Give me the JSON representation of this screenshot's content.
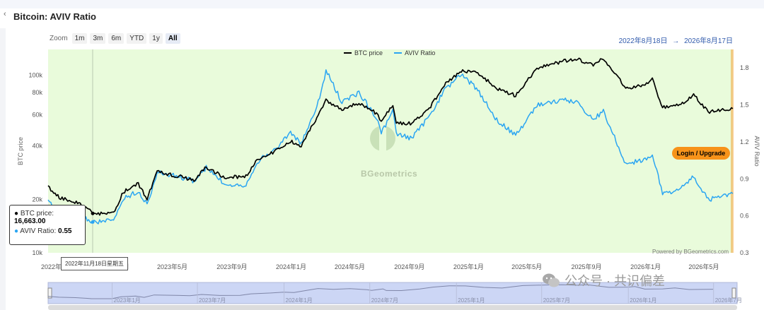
{
  "header": {
    "title": "Bitcoin: AVIV Ratio",
    "back_icon": "chevron-left-icon"
  },
  "zoom": {
    "label": "Zoom",
    "buttons": [
      "1m",
      "3m",
      "6m",
      "YTD",
      "1y",
      "All"
    ],
    "selected": "All"
  },
  "range": {
    "start": "2022年8月18日",
    "arrow": "→",
    "end": "2026年8月17日"
  },
  "tooltip": {
    "date": "2022年11月18日星期五",
    "btc_label": "BTC price:",
    "btc_value": "16,663.00",
    "aviv_label": "AVIV Ratio:",
    "aviv_value": "0.55"
  },
  "login_button": "Login / Upgrade",
  "powered_by": "Powered by BGeometrics.com",
  "watermark": "BGeometrics",
  "wechat_watermark": "公众号 · 共识偏差",
  "colors": {
    "plot_bg": "#e9fbdb",
    "btc": "#000000",
    "aviv": "#2aa5f2",
    "login": "#f7931a",
    "navigator": "#ccd6f5"
  },
  "chart_data": {
    "type": "line",
    "title": "",
    "legend": [
      "BTC price",
      "AVIV Ratio"
    ],
    "legend_position": "top-center",
    "left_axis": {
      "label": "BTC price",
      "scale": "log",
      "ticks": [
        "10k",
        "20k",
        "40k",
        "60k",
        "80k",
        "100k"
      ],
      "range": [
        10000,
        140000
      ]
    },
    "right_axis": {
      "label": "AVIV Ratio",
      "ticks": [
        "0.3",
        "0.6",
        "0.9",
        "1.2",
        "1.5",
        "1.8"
      ],
      "range": [
        0.3,
        1.95
      ]
    },
    "x_ticks": [
      "2022年",
      "2023年1月",
      "2023年5月",
      "2023年9月",
      "2024年1月",
      "2024年5月",
      "2024年9月",
      "2025年1月",
      "2025年5月",
      "2025年9月",
      "2026年1月",
      "2026年5月"
    ],
    "navigator_ticks": [
      "2023年1月",
      "2023年7月",
      "2024年1月",
      "2024年7月",
      "2025年1月",
      "2025年7月",
      "2026年1月",
      "2026年7月"
    ],
    "x_range": [
      "2022-08-18",
      "2026-06-30"
    ],
    "series": [
      {
        "name": "BTC price",
        "points": [
          [
            "2022-08-18",
            23500
          ],
          [
            "2022-09-10",
            20500
          ],
          [
            "2022-10-15",
            19300
          ],
          [
            "2022-11-09",
            17500
          ],
          [
            "2022-11-18",
            16663
          ],
          [
            "2022-12-31",
            16600
          ],
          [
            "2023-01-20",
            22000
          ],
          [
            "2023-02-20",
            24500
          ],
          [
            "2023-03-10",
            20200
          ],
          [
            "2023-03-31",
            28500
          ],
          [
            "2023-05-15",
            27000
          ],
          [
            "2023-06-15",
            25500
          ],
          [
            "2023-07-10",
            30500
          ],
          [
            "2023-08-17",
            26500
          ],
          [
            "2023-09-30",
            27000
          ],
          [
            "2023-10-23",
            33500
          ],
          [
            "2023-11-30",
            37500
          ],
          [
            "2023-12-31",
            42500
          ],
          [
            "2024-01-22",
            40000
          ],
          [
            "2024-02-29",
            62000
          ],
          [
            "2024-03-13",
            72000
          ],
          [
            "2024-04-15",
            64000
          ],
          [
            "2024-05-20",
            70000
          ],
          [
            "2024-06-25",
            61000
          ],
          [
            "2024-07-05",
            55000
          ],
          [
            "2024-07-29",
            68000
          ],
          [
            "2024-08-05",
            54000
          ],
          [
            "2024-09-06",
            53500
          ],
          [
            "2024-10-15",
            67000
          ],
          [
            "2024-11-12",
            88000
          ],
          [
            "2024-12-17",
            106000
          ],
          [
            "2025-01-20",
            104000
          ],
          [
            "2025-02-28",
            84000
          ],
          [
            "2025-04-08",
            77000
          ],
          [
            "2025-05-22",
            110000
          ],
          [
            "2025-07-14",
            120000
          ],
          [
            "2025-08-14",
            123000
          ],
          [
            "2025-09-15",
            115000
          ],
          [
            "2025-10-06",
            124000
          ],
          [
            "2025-11-21",
            85000
          ],
          [
            "2025-12-31",
            88000
          ],
          [
            "2026-01-15",
            95000
          ],
          [
            "2026-02-05",
            66000
          ],
          [
            "2026-03-15",
            68000
          ],
          [
            "2026-04-10",
            78000
          ],
          [
            "2026-05-10",
            62000
          ],
          [
            "2026-06-30",
            65000
          ]
        ]
      },
      {
        "name": "AVIV Ratio",
        "points": [
          [
            "2022-08-18",
            0.72
          ],
          [
            "2022-09-15",
            0.63
          ],
          [
            "2022-10-15",
            0.61
          ],
          [
            "2022-11-18",
            0.55
          ],
          [
            "2022-12-31",
            0.56
          ],
          [
            "2023-01-20",
            0.74
          ],
          [
            "2023-02-20",
            0.8
          ],
          [
            "2023-03-10",
            0.69
          ],
          [
            "2023-03-31",
            0.95
          ],
          [
            "2023-05-15",
            0.92
          ],
          [
            "2023-06-15",
            0.88
          ],
          [
            "2023-07-10",
            0.99
          ],
          [
            "2023-08-17",
            0.86
          ],
          [
            "2023-09-30",
            0.85
          ],
          [
            "2023-10-23",
            1.04
          ],
          [
            "2023-11-30",
            1.14
          ],
          [
            "2023-12-31",
            1.28
          ],
          [
            "2024-01-22",
            1.18
          ],
          [
            "2024-02-29",
            1.55
          ],
          [
            "2024-03-13",
            1.78
          ],
          [
            "2024-04-15",
            1.52
          ],
          [
            "2024-05-20",
            1.6
          ],
          [
            "2024-06-25",
            1.4
          ],
          [
            "2024-07-05",
            1.27
          ],
          [
            "2024-07-29",
            1.45
          ],
          [
            "2024-08-05",
            1.26
          ],
          [
            "2024-09-06",
            1.23
          ],
          [
            "2024-10-15",
            1.42
          ],
          [
            "2024-11-12",
            1.62
          ],
          [
            "2024-12-17",
            1.75
          ],
          [
            "2025-01-20",
            1.62
          ],
          [
            "2025-02-28",
            1.38
          ],
          [
            "2025-04-08",
            1.25
          ],
          [
            "2025-05-22",
            1.5
          ],
          [
            "2025-07-14",
            1.54
          ],
          [
            "2025-08-14",
            1.52
          ],
          [
            "2025-09-15",
            1.38
          ],
          [
            "2025-10-06",
            1.45
          ],
          [
            "2025-11-21",
            1.02
          ],
          [
            "2025-12-31",
            1.06
          ],
          [
            "2026-01-15",
            1.1
          ],
          [
            "2026-02-05",
            0.78
          ],
          [
            "2026-03-15",
            0.82
          ],
          [
            "2026-04-10",
            0.92
          ],
          [
            "2026-05-10",
            0.73
          ],
          [
            "2026-06-30",
            0.78
          ]
        ]
      }
    ]
  }
}
